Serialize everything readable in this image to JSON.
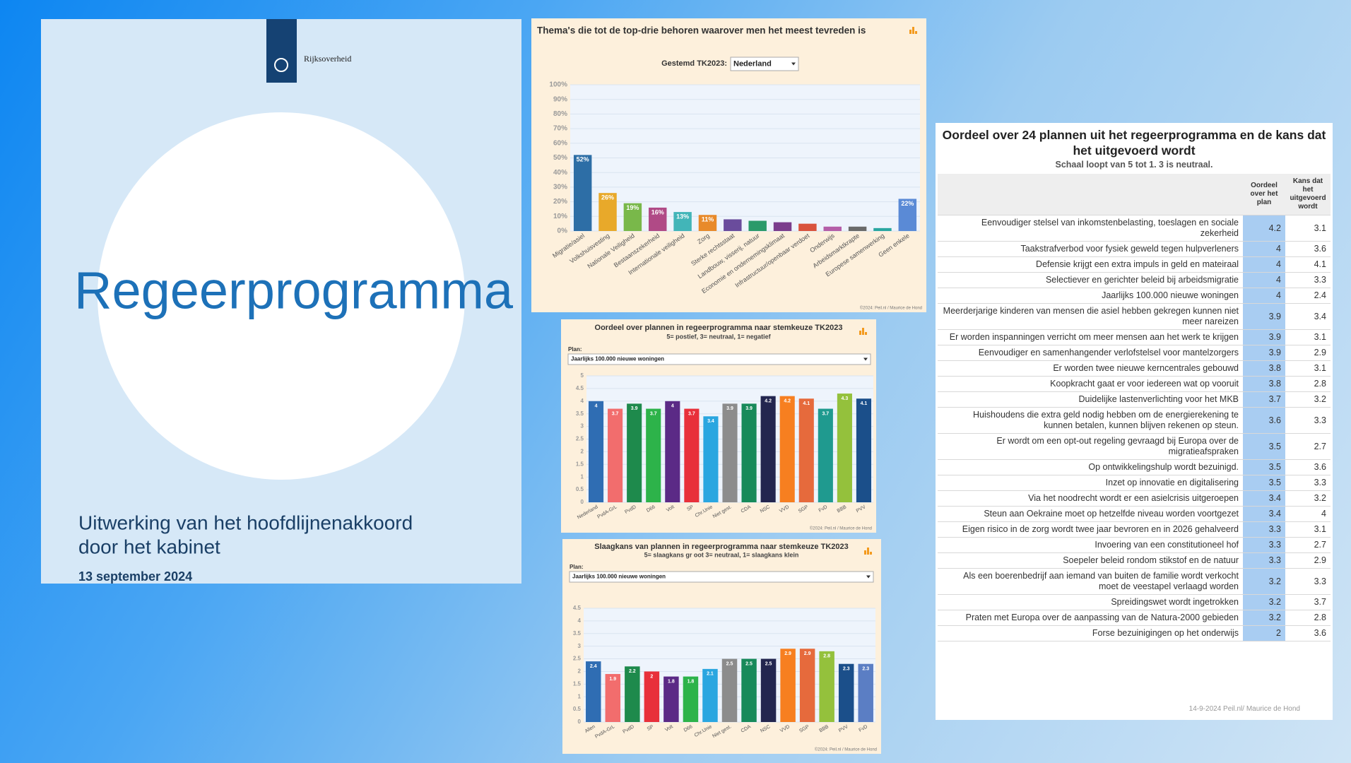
{
  "cover": {
    "brand": "Rijksoverheid",
    "title": "Regeerprogramma",
    "subtitle": [
      "Uitwerking van het hoofdlijnenakkoord",
      "door het kabinet"
    ],
    "date": "13 september 2024"
  },
  "chart_data": [
    {
      "type": "bar",
      "title": "Thema's die tot de top-drie behoren waarover men het meest tevreden is",
      "filter_label": "Gestemd TK2023:",
      "filter_value": "Nederland",
      "categories": [
        "Migratie/asiel",
        "Volkshuisvesting",
        "Nationale Veiligheid",
        "Bestaanszekerheid",
        "Internationale veiligheid",
        "Zorg",
        "Sterke rechtsstaat",
        "Landbouw, visserij, natuur",
        "Economie en ondernemingsklimaat",
        "Infrastructuur/openbaar verdoet",
        "Onderwijs",
        "Arbeidsmarktkrapte",
        "Europese samenwerking",
        "Geen enkele"
      ],
      "values": [
        52,
        26,
        19,
        16,
        13,
        11,
        8,
        7,
        6,
        5,
        3,
        3,
        2,
        22
      ],
      "value_labels": [
        "52%",
        "26%",
        "19%",
        "16%",
        "13%",
        "11%",
        null,
        null,
        null,
        null,
        null,
        null,
        null,
        "22%"
      ],
      "colors": [
        "#2d6ea6",
        "#e8a92a",
        "#79b84a",
        "#b04a86",
        "#42b5b8",
        "#e88a2a",
        "#6a4c9c",
        "#2a9a6a",
        "#7a3d8c",
        "#d9533d",
        "#b45ea8",
        "#6a6a6a",
        "#2aa6a0",
        "#5a8ad6"
      ],
      "ylim": [
        0,
        100
      ],
      "yticks": [
        {
          "value": 0,
          "label": "0%"
        },
        {
          "value": 10,
          "label": "10%"
        },
        {
          "value": 20,
          "label": "20%"
        },
        {
          "value": 30,
          "label": "30%"
        },
        {
          "value": 40,
          "label": "40%"
        },
        {
          "value": 50,
          "label": "50%"
        },
        {
          "value": 60,
          "label": "60%"
        },
        {
          "value": 70,
          "label": "70%"
        },
        {
          "value": 80,
          "label": "80%"
        },
        {
          "value": 90,
          "label": "90%"
        },
        {
          "value": 100,
          "label": "100%"
        }
      ],
      "grid": true,
      "footer": "©2024: Peil.nl / Maurice de Hond"
    },
    {
      "type": "bar",
      "title": "Oordeel over plannen in regeerprogramma naar stemkeuze TK2023",
      "subtitle": "5= postief, 3= neutraal, 1= negatief",
      "filter_label": "Plan:",
      "filter_value": "Jaarlijks 100.000 nieuwe woningen",
      "categories": [
        "Nederland",
        "PvdA-GrL",
        "PvdD",
        "D66",
        "Volt",
        "SP",
        "Chr.Unie",
        "Niet gest.",
        "CDA",
        "NSC",
        "VVD",
        "SGP",
        "FvD",
        "BBB",
        "PVV"
      ],
      "values": [
        4,
        3.7,
        3.9,
        3.7,
        4,
        3.7,
        3.4,
        3.9,
        3.9,
        4.2,
        4.2,
        4.1,
        3.7,
        4.3,
        4.1
      ],
      "colors": [
        "#2f6db3",
        "#f26d6d",
        "#1e8a4c",
        "#2db34a",
        "#5b2a86",
        "#e8303a",
        "#2aa6e0",
        "#8c8c8c",
        "#178a5a",
        "#23264f",
        "#f77f20",
        "#e66a3c",
        "#1f9a8f",
        "#94c13c",
        "#1b4f8a"
      ],
      "ylim": [
        0,
        5
      ],
      "yticks": [
        0,
        0.5,
        1,
        1.5,
        2,
        2.5,
        3,
        3.5,
        4,
        4.5,
        5
      ],
      "grid": true,
      "footer": "©2024: Peil.nl / Maurice de Hond"
    },
    {
      "type": "bar",
      "title": "Slaagkans van plannen in regeerprogramma naar stemkeuze TK2023",
      "subtitle": "5= slaagkans gr oot 3= neutraal, 1= slaagkans klein",
      "filter_label": "Plan:",
      "filter_value": "Jaarlijks 100.000 nieuwe woningen",
      "categories": [
        "Allen",
        "PvdA-GrL",
        "PvdD",
        "SP",
        "Volt",
        "D66",
        "Chr.Unie",
        "Niet gest.",
        "CDA",
        "NSC",
        "VVD",
        "SGP",
        "BBB",
        "PVV",
        "FvD"
      ],
      "values": [
        2.4,
        1.9,
        2.2,
        2,
        1.8,
        1.8,
        2.1,
        2.5,
        2.5,
        2.5,
        2.9,
        2.9,
        2.8,
        2.3,
        2.3
      ],
      "colors": [
        "#2f6db3",
        "#f26d6d",
        "#1e8a4c",
        "#e8303a",
        "#5b2a86",
        "#2db34a",
        "#2aa6e0",
        "#8c8c8c",
        "#178a5a",
        "#23264f",
        "#f77f20",
        "#e66a3c",
        "#94c13c",
        "#1b4f8a",
        "#5b7ec4"
      ],
      "ylim": [
        0,
        4.5
      ],
      "yticks": [
        0,
        0.5,
        1,
        1.5,
        2,
        2.5,
        3,
        3.5,
        4,
        4.5
      ],
      "grid": true,
      "footer": "©2024: Peil.nl / Maurice de Hond"
    }
  ],
  "table": {
    "title": "Oordeel over 24 plannen uit het regeerprogramma en de kans dat het uitgevoerd wordt",
    "subtitle": "Schaal loopt van 5 tot 1. 3 is neutraal.",
    "columns": [
      "Oordeel over het plan",
      "Kans dat het uitgevoerd wordt"
    ],
    "rows": [
      [
        "Eenvoudiger stelsel van inkomstenbelasting, toeslagen en sociale zekerheid",
        4.2,
        3.1
      ],
      [
        "Taakstrafverbod voor fysiek geweld tegen hulpverleners",
        4,
        3.6
      ],
      [
        "Defensie krijgt een extra impuls in geld en mateiraal",
        4,
        4.1
      ],
      [
        "Selectiever en gerichter beleid bij arbeidsmigratie",
        4,
        3.3
      ],
      [
        "Jaarlijks 100.000 nieuwe woningen",
        4,
        2.4
      ],
      [
        "Meerderjarige kinderen van mensen die asiel hebben gekregen kunnen niet meer nareizen",
        3.9,
        3.4
      ],
      [
        "Er worden inspanningen verricht om meer mensen aan het werk te krijgen",
        3.9,
        3.1
      ],
      [
        "Eenvoudiger en samenhangender verlofstelsel voor mantelzorgers",
        3.9,
        2.9
      ],
      [
        "Er worden twee nieuwe kerncentrales gebouwd",
        3.8,
        3.1
      ],
      [
        "Koopkracht gaat er voor iedereen wat op vooruit",
        3.8,
        2.8
      ],
      [
        "Duidelijke lastenverlichting voor het MKB",
        3.7,
        3.2
      ],
      [
        "Huishoudens die extra geld nodig hebben om de energierekening te kunnen betalen, kunnen blijven rekenen op steun.",
        3.6,
        3.3
      ],
      [
        "Er wordt om een opt-out regeling gevraagd bij Europa over de migratieafspraken",
        3.5,
        2.7
      ],
      [
        "Op ontwikkelingshulp wordt bezuinigd.",
        3.5,
        3.6
      ],
      [
        "Inzet op innovatie en digitalisering",
        3.5,
        3.3
      ],
      [
        "Via het noodrecht wordt er een asielcrisis uitgeroepen",
        3.4,
        3.2
      ],
      [
        "Steun aan Oekraine moet op hetzelfde niveau worden voortgezet",
        3.4,
        4
      ],
      [
        "Eigen risico in de zorg wordt twee jaar bevroren en in 2026 gehalveerd",
        3.3,
        3.1
      ],
      [
        "Invoering van een constitutioneel hof",
        3.3,
        2.7
      ],
      [
        "Soepeler beleid rondom stikstof en de natuur",
        3.3,
        2.9
      ],
      [
        "Als een boerenbedrijf aan iemand van buiten de familie wordt verkocht moet de veestapel verlaagd worden",
        3.2,
        3.3
      ],
      [
        "Spreidingswet wordt ingetrokken",
        3.2,
        3.7
      ],
      [
        "Praten met Europa over de aanpassing van de Natura-2000 gebieden",
        3.2,
        2.8
      ],
      [
        "Forse bezuinigingen op het onderwijs",
        2,
        3.6
      ]
    ],
    "footer": "14-9-2024 Peil.nl/ Maurice de Hond"
  }
}
